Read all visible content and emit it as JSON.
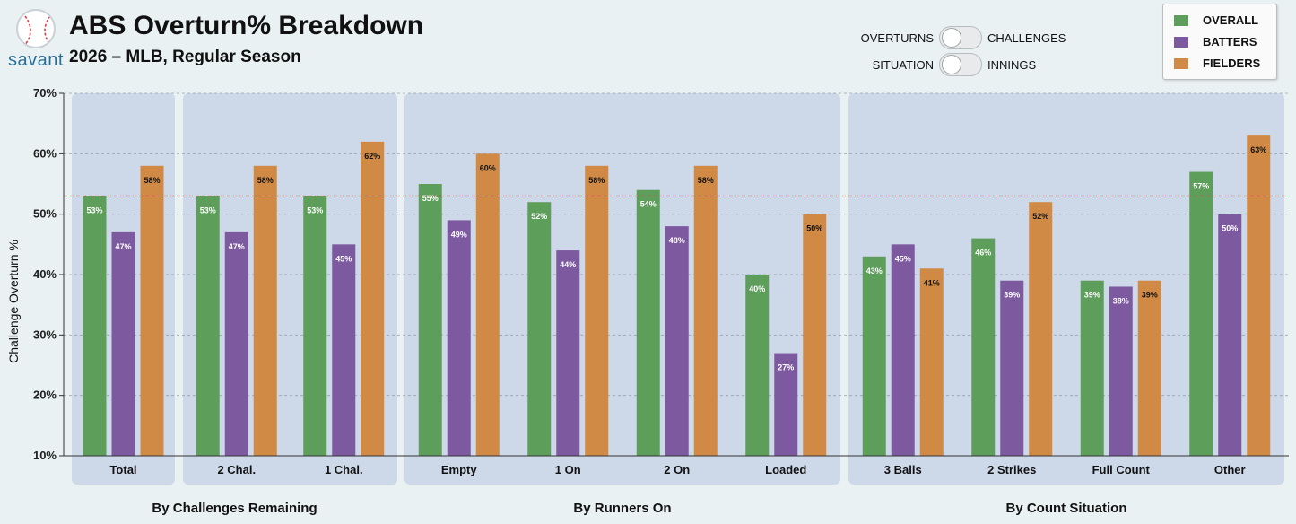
{
  "header": {
    "logo_text": "savant",
    "title": "ABS Overturn% Breakdown",
    "subtitle": "2026 – MLB, Regular Season"
  },
  "toggles": [
    {
      "left_label": "OVERTURNS",
      "right_label": "CHALLENGES"
    },
    {
      "left_label": "SITUATION",
      "right_label": "INNINGS"
    }
  ],
  "colors": {
    "overall": "#5e9e5b",
    "batters": "#7d5aa0",
    "fielders": "#d08a45",
    "panel": "#cdd8e9",
    "reference_line": "#e0505a",
    "background": "#e9f1f2"
  },
  "chart_data": {
    "type": "bar",
    "ylabel": "Challenge Overturn %",
    "ylim": [
      10,
      70
    ],
    "yticks": [
      "10%",
      "20%",
      "30%",
      "40%",
      "50%",
      "60%",
      "70%"
    ],
    "grid": true,
    "legend_position": "top-right",
    "reference_value": 53,
    "series": [
      {
        "name": "OVERALL",
        "color_key": "overall"
      },
      {
        "name": "BATTERS",
        "color_key": "batters"
      },
      {
        "name": "FIELDERS",
        "color_key": "fielders"
      }
    ],
    "groups": [
      {
        "label": "By Challenges Remaining",
        "panels": [
          {
            "categories": [
              {
                "label": "Total",
                "values": [
                  53,
                  47,
                  58
                ],
                "labels": [
                  "53%",
                  "47%",
                  "58%"
                ]
              }
            ]
          },
          {
            "categories": [
              {
                "label": "2 Chal.",
                "values": [
                  53,
                  47,
                  58
                ],
                "labels": [
                  "53%",
                  "47%",
                  "58%"
                ]
              },
              {
                "label": "1 Chal.",
                "values": [
                  53,
                  45,
                  62
                ],
                "labels": [
                  "53%",
                  "45%",
                  "62%"
                ]
              }
            ]
          }
        ]
      },
      {
        "label": "By Runners On",
        "panels": [
          {
            "categories": [
              {
                "label": "Empty",
                "values": [
                  55,
                  49,
                  60
                ],
                "labels": [
                  "55%",
                  "49%",
                  "60%"
                ]
              },
              {
                "label": "1 On",
                "values": [
                  52,
                  44,
                  58
                ],
                "labels": [
                  "52%",
                  "44%",
                  "58%"
                ]
              },
              {
                "label": "2 On",
                "values": [
                  54,
                  48,
                  58
                ],
                "labels": [
                  "54%",
                  "48%",
                  "58%"
                ]
              },
              {
                "label": "Loaded",
                "values": [
                  40,
                  27,
                  50
                ],
                "labels": [
                  "40%",
                  "27%",
                  "50%"
                ]
              }
            ]
          }
        ]
      },
      {
        "label": "By Count Situation",
        "panels": [
          {
            "categories": [
              {
                "label": "3 Balls",
                "values": [
                  43,
                  45,
                  41
                ],
                "labels": [
                  "43%",
                  "45%",
                  "41%"
                ]
              },
              {
                "label": "2 Strikes",
                "values": [
                  46,
                  39,
                  52
                ],
                "labels": [
                  "46%",
                  "39%",
                  "52%"
                ]
              },
              {
                "label": "Full Count",
                "values": [
                  39,
                  38,
                  39
                ],
                "labels": [
                  "39%",
                  "38%",
                  "39%"
                ]
              },
              {
                "label": "Other",
                "values": [
                  57,
                  50,
                  63
                ],
                "labels": [
                  "57%",
                  "50%",
                  "63%"
                ]
              }
            ]
          }
        ]
      }
    ]
  }
}
